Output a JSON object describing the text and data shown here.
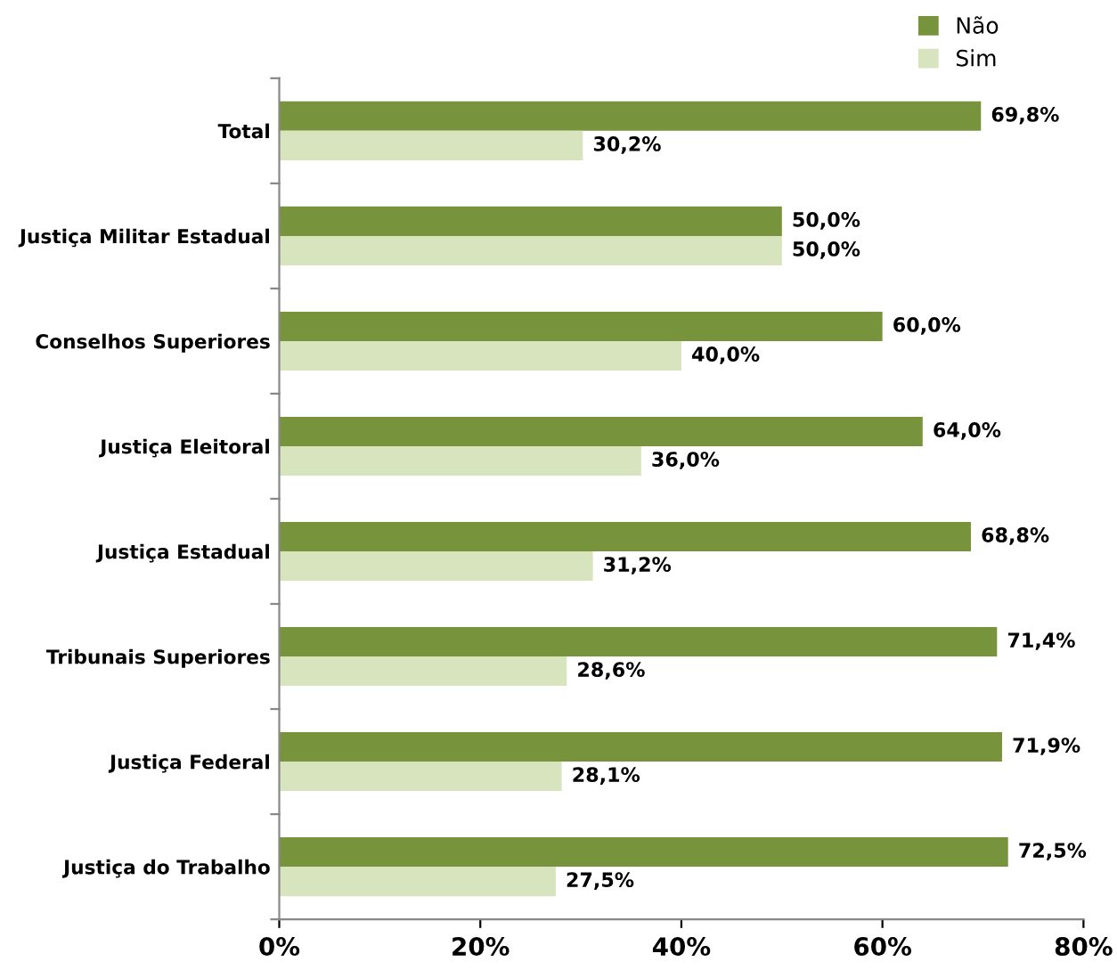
{
  "chart_data": {
    "type": "bar",
    "orientation": "horizontal",
    "categories": [
      "Total",
      "Justiça Militar Estadual",
      "Conselhos Superiores",
      "Justiça Eleitoral",
      "Justiça Estadual",
      "Tribunais Superiores",
      "Justiça Federal",
      "Justiça do Trabalho"
    ],
    "series": [
      {
        "name": "Não",
        "color": "#77933c",
        "values": [
          69.8,
          50.0,
          60.0,
          64.0,
          68.8,
          71.4,
          71.9,
          72.5
        ],
        "value_labels": [
          "69,8%",
          "50,0%",
          "60,0%",
          "64,0%",
          "68,8%",
          "71,4%",
          "71,9%",
          "72,5%"
        ]
      },
      {
        "name": "Sim",
        "color": "#d7e4bd",
        "values": [
          30.2,
          50.0,
          40.0,
          36.0,
          31.2,
          28.6,
          28.1,
          27.5
        ],
        "value_labels": [
          "30,2%",
          "50,0%",
          "40,0%",
          "36,0%",
          "31,2%",
          "28,6%",
          "28,1%",
          "27,5%"
        ]
      }
    ],
    "xlim": [
      0,
      80
    ],
    "xticks": [
      {
        "value": 0,
        "label": "0%"
      },
      {
        "value": 20,
        "label": "20%"
      },
      {
        "value": 40,
        "label": "40%"
      },
      {
        "value": 60,
        "label": "60%"
      },
      {
        "value": 80,
        "label": "80%"
      }
    ],
    "grid": false,
    "legend": "top right"
  }
}
